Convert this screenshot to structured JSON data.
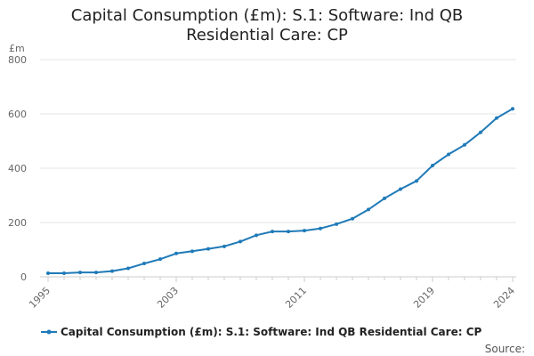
{
  "chart_data": {
    "type": "line",
    "title": "Capital Consumption (£m): S.1: Software: Ind QB Residential Care: CP",
    "title_lines": [
      "Capital Consumption (£m): S.1: Software: Ind QB",
      "Residential Care: CP"
    ],
    "ylabel": "£m",
    "xlabel": "",
    "ylim": [
      0,
      800
    ],
    "yticks": [
      0,
      200,
      400,
      600,
      800
    ],
    "xlim": [
      1995,
      2024
    ],
    "xticks": [
      1995,
      2003,
      2011,
      2019,
      2024
    ],
    "grid": true,
    "legend_position": "bottom",
    "source_label": "Source:",
    "colors": {
      "series": "#1f7ab8",
      "grid": "#e6e6e6",
      "axis": "#cccccc"
    },
    "series": [
      {
        "name": "Capital Consumption (£m): S.1: Software: Ind QB Residential Care: CP",
        "x": [
          1995,
          1996,
          1997,
          1998,
          1999,
          2000,
          2001,
          2002,
          2003,
          2004,
          2005,
          2006,
          2007,
          2008,
          2009,
          2010,
          2011,
          2012,
          2013,
          2014,
          2015,
          2016,
          2017,
          2018,
          2019,
          2020,
          2021,
          2022,
          2023,
          2024
        ],
        "values": [
          13,
          13,
          16,
          16,
          21,
          31,
          49,
          65,
          86,
          94,
          103,
          112,
          130,
          153,
          167,
          167,
          170,
          178,
          194,
          214,
          248,
          289,
          323,
          353,
          410,
          451,
          486,
          532,
          585,
          619
        ]
      }
    ]
  }
}
